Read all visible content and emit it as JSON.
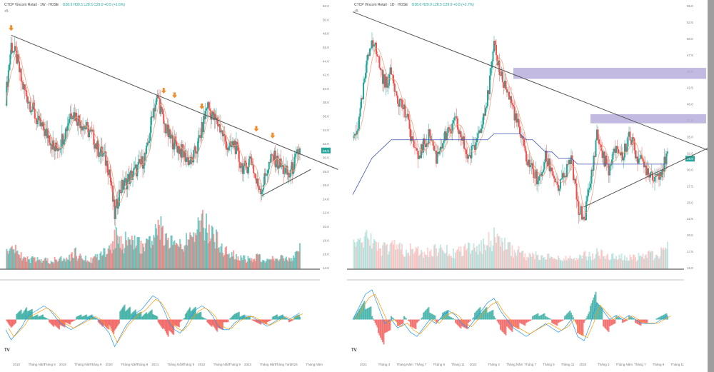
{
  "colors": {
    "up": "#26a69a",
    "down": "#ef5350",
    "ma_fast": "#f4a582",
    "ma_slow": "#3f51b5",
    "trend": "#555555",
    "arrow": "#f28c28",
    "zone": "#b3a9d9",
    "price_tag": "#26a69a"
  },
  "chart_data": [
    {
      "type": "candlestick",
      "title": "CTCP Vincom Retail · 1W · HOSE",
      "ohlc_text": "O28.9 H30.5 L28.5 C29.9 +0.5 (+1.6%)",
      "interval_label": "+5",
      "ylim": [
        12,
        52
      ],
      "yticks": [
        "52.0",
        "50.0",
        "48.0",
        "46.0",
        "44.0",
        "42.0",
        "40.0",
        "38.0",
        "36.0",
        "34.0",
        "32.0",
        "30.0",
        "28.0",
        "26.0",
        "24.0",
        "22.0",
        "20.0",
        "18.0",
        "16.0",
        "14.0"
      ],
      "last_price": "29.9",
      "xticks": [
        "2018",
        "Tháng Năm",
        "Tháng 9",
        "2019",
        "Tháng Năm",
        "Tháng 9",
        "2020",
        "Tháng Năm",
        "Tháng 9",
        "2021",
        "Tháng Năm",
        "Tháng 9",
        "2022",
        "Tháng Năm",
        "Tháng 9",
        "2023",
        "Tháng Năm",
        "Tháng Tám",
        "2024",
        "Tháng Năm"
      ],
      "closes": [
        38,
        46,
        44,
        40,
        38,
        36,
        34,
        33,
        32,
        30,
        31,
        33,
        36,
        35,
        34,
        33,
        32,
        30,
        29,
        27,
        20,
        24,
        25,
        26,
        27,
        28,
        30,
        36,
        38,
        34,
        32,
        31,
        30,
        29,
        28,
        30,
        33,
        37,
        35,
        34,
        32,
        30,
        31,
        28,
        27,
        29,
        25,
        24,
        27,
        29,
        28,
        27,
        26,
        28,
        30
      ],
      "volumes": [
        20,
        25,
        18,
        14,
        12,
        12,
        10,
        11,
        10,
        12,
        12,
        14,
        20,
        16,
        14,
        12,
        14,
        16,
        20,
        28,
        40,
        30,
        34,
        36,
        30,
        28,
        34,
        46,
        50,
        38,
        32,
        30,
        28,
        34,
        40,
        52,
        54,
        48,
        38,
        28,
        24,
        20,
        16,
        14,
        12,
        12,
        14,
        12,
        10,
        12,
        14,
        12,
        14,
        18,
        40
      ],
      "macd": [
        -3,
        -6,
        -4,
        -2,
        1,
        2,
        3,
        4,
        3,
        1,
        -1,
        -2,
        -3,
        -2,
        -1,
        0,
        1,
        0,
        -2,
        -4,
        -8,
        -5,
        -2,
        0,
        2,
        3,
        5,
        7,
        6,
        3,
        -1,
        -3,
        -4,
        -2,
        1,
        3,
        4,
        3,
        1,
        -2,
        -3,
        -3,
        -1,
        0,
        1,
        1,
        0,
        -1,
        -2,
        -1,
        0,
        1,
        0,
        1,
        2
      ],
      "trendline_from": [
        1,
        47.5
      ],
      "trendline_to": [
        61,
        27
      ],
      "support_from": [
        47,
        23
      ],
      "support_to": [
        56,
        27
      ],
      "arrows_at": [
        1,
        29,
        31,
        36,
        46,
        49
      ],
      "macd_ylim": [
        -10,
        10
      ]
    },
    {
      "type": "candlestick",
      "title": "CTCP Vincom Retail · 1D · HOSE",
      "ohlc_text": "O28.6 H29.9 L28.5 C29.9 +0.8 (+2.7%)",
      "interval_label": "+5",
      "ylim": [
        12,
        55
      ],
      "yticks": [
        "55.0",
        "52.5",
        "50.0",
        "47.5",
        "45.0",
        "42.5",
        "40.0",
        "37.5",
        "35.0",
        "32.5",
        "30.0",
        "27.5",
        "25.0",
        "22.5",
        "20.0",
        "17.5",
        "15.0"
      ],
      "last_price": "29.9",
      "xticks": [
        "2021",
        "Tháng 3",
        "Tháng Năm",
        "Tháng 7",
        "Tháng 9",
        "Tháng 11",
        "2022",
        "Tháng 3",
        "Tháng Năm",
        "Tháng 7",
        "Tháng 9",
        "Tháng 11",
        "2023",
        "Tháng 3",
        "Tháng Năm",
        "Tháng 7",
        "Tháng 9",
        "Tháng 11"
      ],
      "closes": [
        33,
        36,
        44,
        50,
        46,
        42,
        44,
        40,
        38,
        34,
        30,
        32,
        34,
        30,
        33,
        34,
        36,
        33,
        30,
        32,
        36,
        40,
        48,
        44,
        41,
        38,
        34,
        30,
        28,
        26,
        30,
        28,
        25,
        27,
        30,
        22,
        20,
        26,
        34,
        30,
        28,
        32,
        30,
        34,
        31,
        29,
        28,
        27,
        28,
        30
      ],
      "volumes": [
        14,
        16,
        18,
        16,
        12,
        12,
        14,
        12,
        11,
        12,
        10,
        10,
        11,
        12,
        12,
        10,
        10,
        11,
        12,
        12,
        14,
        16,
        18,
        16,
        12,
        10,
        9,
        8,
        8,
        7,
        7,
        6,
        6,
        6,
        6,
        7,
        8,
        8,
        9,
        8,
        8,
        8,
        7,
        7,
        7,
        8,
        8,
        9,
        10,
        12
      ],
      "macd": [
        0,
        3,
        6,
        7,
        3,
        -1,
        0,
        -2,
        -1,
        -3,
        -4,
        -2,
        0,
        -1,
        1,
        2,
        1,
        -1,
        -2,
        0,
        2,
        4,
        5,
        2,
        0,
        -2,
        -3,
        -4,
        -3,
        -2,
        -1,
        -2,
        -3,
        -2,
        0,
        -4,
        -5,
        -1,
        4,
        2,
        0,
        1,
        0,
        1,
        0,
        -1,
        -1,
        -1,
        0,
        1
      ],
      "ma_slow": [
        24,
        26,
        28,
        30,
        31,
        32,
        33,
        33,
        33,
        33,
        33,
        33,
        33,
        33,
        33,
        33,
        33,
        33,
        33,
        33,
        33,
        33,
        34,
        34,
        34,
        34,
        34,
        33,
        33,
        32,
        31,
        31,
        30,
        30,
        30,
        29,
        29,
        29,
        29,
        29,
        29,
        29,
        29,
        29,
        29,
        29,
        29,
        29,
        29,
        29
      ],
      "trendline_from": [
        0,
        54
      ],
      "trendline_to": [
        56,
        31
      ],
      "support_from": [
        36,
        22
      ],
      "support_to": [
        56,
        32
      ],
      "zones": [
        {
          "from": 25,
          "to": 55,
          "low": 43,
          "high": 44.8
        },
        {
          "from": 37,
          "to": 55,
          "low": 35.7,
          "high": 37.2
        }
      ],
      "macd_ylim": [
        -8,
        8
      ]
    }
  ]
}
